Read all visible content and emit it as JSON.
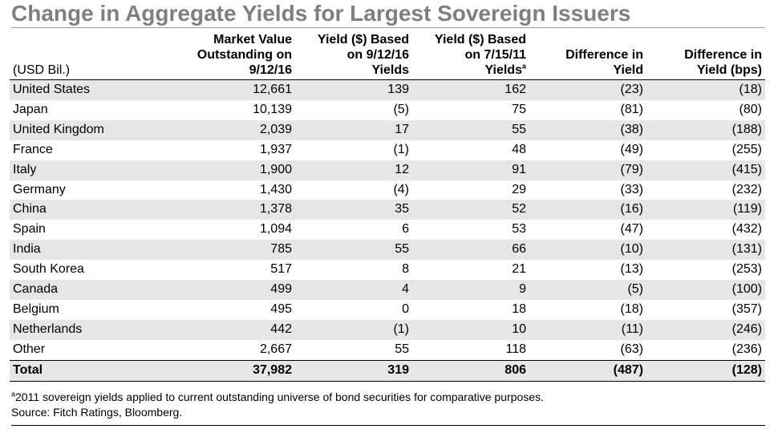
{
  "title": "Change in Aggregate Yields for Largest Sovereign Issuers",
  "chart_data": {
    "type": "table",
    "title": "Change in Aggregate Yields for Largest Sovereign Issuers",
    "unit_label": "(USD Bil.)",
    "columns": [
      {
        "lines": [
          "Market Value",
          "Outstanding on",
          "9/12/16"
        ],
        "sup": ""
      },
      {
        "lines": [
          "Yield ($) Based",
          "on 9/12/16",
          "Yields"
        ],
        "sup": ""
      },
      {
        "lines": [
          "Yield ($) Based",
          "on 7/15/11",
          "Yields"
        ],
        "sup": "a"
      },
      {
        "lines": [
          "",
          "Difference in",
          "Yield"
        ],
        "sup": ""
      },
      {
        "lines": [
          "",
          "Difference in",
          "Yield (bps)"
        ],
        "sup": ""
      }
    ],
    "rows": [
      {
        "country": "United States",
        "values": [
          "12,661",
          "139",
          "162",
          "(23)",
          "(18)"
        ]
      },
      {
        "country": "Japan",
        "values": [
          "10,139",
          "(5)",
          "75",
          "(81)",
          "(80)"
        ]
      },
      {
        "country": "United Kingdom",
        "values": [
          "2,039",
          "17",
          "55",
          "(38)",
          "(188)"
        ]
      },
      {
        "country": "France",
        "values": [
          "1,937",
          "(1)",
          "48",
          "(49)",
          "(255)"
        ]
      },
      {
        "country": "Italy",
        "values": [
          "1,900",
          "12",
          "91",
          "(79)",
          "(415)"
        ]
      },
      {
        "country": "Germany",
        "values": [
          "1,430",
          "(4)",
          "29",
          "(33)",
          "(232)"
        ]
      },
      {
        "country": "China",
        "values": [
          "1,378",
          "35",
          "52",
          "(16)",
          "(119)"
        ]
      },
      {
        "country": "Spain",
        "values": [
          "1,094",
          "6",
          "53",
          "(47)",
          "(432)"
        ]
      },
      {
        "country": "India",
        "values": [
          "785",
          "55",
          "66",
          "(10)",
          "(131)"
        ]
      },
      {
        "country": "South Korea",
        "values": [
          "517",
          "8",
          "21",
          "(13)",
          "(253)"
        ]
      },
      {
        "country": "Canada",
        "values": [
          "499",
          "4",
          "9",
          "(5)",
          "(100)"
        ]
      },
      {
        "country": "Belgium",
        "values": [
          "495",
          "0",
          "18",
          "(18)",
          "(357)"
        ]
      },
      {
        "country": "Netherlands",
        "values": [
          "442",
          "(1)",
          "10",
          "(11)",
          "(246)"
        ]
      },
      {
        "country": "Other",
        "values": [
          "2,667",
          "55",
          "118",
          "(63)",
          "(236)"
        ]
      }
    ],
    "total": {
      "country": "Total",
      "values": [
        "37,982",
        "319",
        "806",
        "(487)",
        "(128)"
      ]
    }
  },
  "footnote": {
    "marker": "a",
    "text": "2011 sovereign yields applied to current outstanding universe of bond securities for comparative purposes.",
    "source": "Source: Fitch Ratings, Bloomberg."
  },
  "colors": {
    "title": "#7f7f7f",
    "row_shade": "#e6e6e6"
  }
}
